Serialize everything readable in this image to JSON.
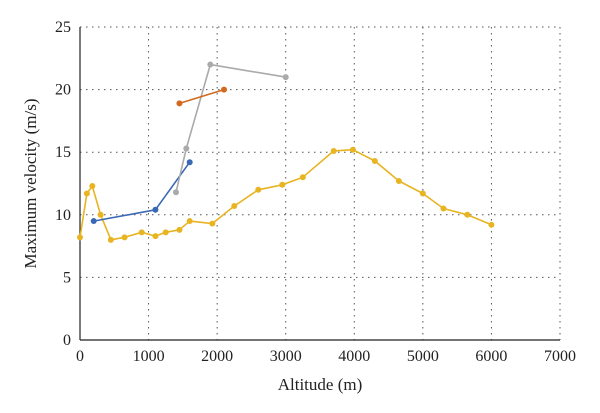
{
  "chart_data": {
    "type": "line",
    "xlabel": "Altitude (m)",
    "ylabel": "Maximum velocity (m/s)",
    "xlim": [
      0,
      7000
    ],
    "ylim": [
      0,
      25
    ],
    "x_ticks": [
      0,
      1000,
      2000,
      3000,
      4000,
      5000,
      6000,
      7000
    ],
    "y_ticks": [
      0,
      5,
      10,
      15,
      20,
      25
    ],
    "grid": "dotted",
    "legend": "none",
    "series": [
      {
        "color": "#E8B422",
        "points": [
          [
            0,
            8.2
          ],
          [
            100,
            11.7
          ],
          [
            180,
            12.3
          ],
          [
            300,
            10.0
          ],
          [
            450,
            8.0
          ],
          [
            650,
            8.2
          ],
          [
            900,
            8.6
          ],
          [
            1100,
            8.3
          ],
          [
            1250,
            8.6
          ],
          [
            1450,
            8.8
          ],
          [
            1600,
            9.5
          ],
          [
            1930,
            9.3
          ],
          [
            2250,
            10.7
          ],
          [
            2600,
            12.0
          ],
          [
            2950,
            12.4
          ],
          [
            3250,
            13.0
          ],
          [
            3700,
            15.1
          ],
          [
            3980,
            15.2
          ],
          [
            4300,
            14.3
          ],
          [
            4650,
            12.7
          ],
          [
            5000,
            11.7
          ],
          [
            5300,
            10.5
          ],
          [
            5650,
            10.0
          ],
          [
            6000,
            9.2
          ]
        ]
      },
      {
        "color": "#3A68B5",
        "points": [
          [
            200,
            9.5
          ],
          [
            1100,
            10.4
          ],
          [
            1600,
            14.2
          ]
        ]
      },
      {
        "color": "#AAAAAA",
        "points": [
          [
            1400,
            11.8
          ],
          [
            1550,
            15.3
          ],
          [
            1900,
            22.0
          ],
          [
            3000,
            21.0
          ]
        ]
      },
      {
        "color": "#D2691E",
        "points": [
          [
            1450,
            18.9
          ],
          [
            2100,
            20.0
          ]
        ]
      }
    ]
  }
}
